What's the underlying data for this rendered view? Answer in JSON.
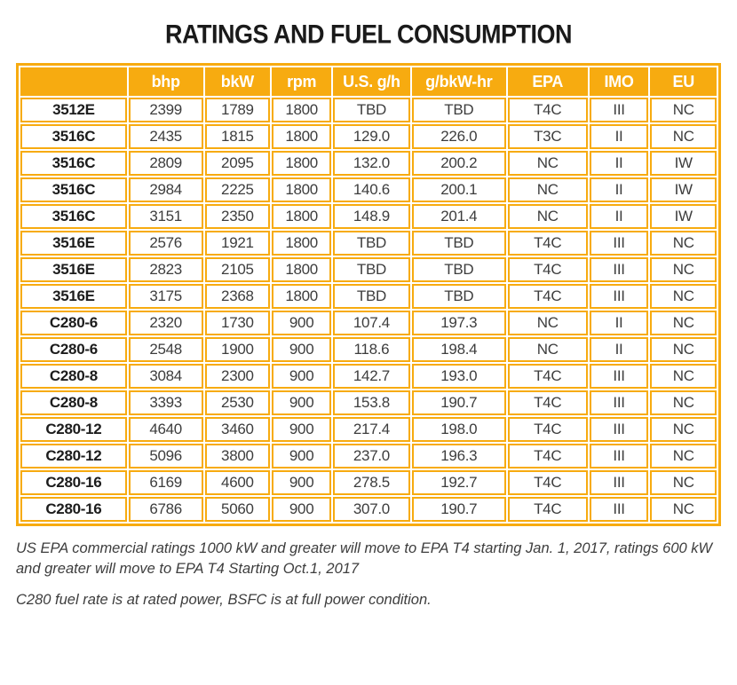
{
  "title": "RATINGS AND FUEL CONSUMPTION",
  "colors": {
    "accent": "#F7AB10",
    "header_text": "#FFFFFF",
    "body_text": "#3D3D3D",
    "model_text": "#1C1C1C",
    "title_color": "#1A1A1A"
  },
  "table": {
    "headers": [
      "",
      "bhp",
      "bkW",
      "rpm",
      "U.S. g/h",
      "g/bkW-hr",
      "EPA",
      "IMO",
      "EU"
    ],
    "rows": [
      {
        "model": "3512E",
        "values": [
          "2399",
          "1789",
          "1800",
          "TBD",
          "TBD",
          "T4C",
          "III",
          "NC"
        ]
      },
      {
        "model": "3516C",
        "values": [
          "2435",
          "1815",
          "1800",
          "129.0",
          "226.0",
          "T3C",
          "II",
          "NC"
        ]
      },
      {
        "model": "3516C",
        "values": [
          "2809",
          "2095",
          "1800",
          "132.0",
          "200.2",
          "NC",
          "II",
          "IW"
        ]
      },
      {
        "model": "3516C",
        "values": [
          "2984",
          "2225",
          "1800",
          "140.6",
          "200.1",
          "NC",
          "II",
          "IW"
        ]
      },
      {
        "model": "3516C",
        "values": [
          "3151",
          "2350",
          "1800",
          "148.9",
          "201.4",
          "NC",
          "II",
          "IW"
        ]
      },
      {
        "model": "3516E",
        "values": [
          "2576",
          "1921",
          "1800",
          "TBD",
          "TBD",
          "T4C",
          "III",
          "NC"
        ]
      },
      {
        "model": "3516E",
        "values": [
          "2823",
          "2105",
          "1800",
          "TBD",
          "TBD",
          "T4C",
          "III",
          "NC"
        ]
      },
      {
        "model": "3516E",
        "values": [
          "3175",
          "2368",
          "1800",
          "TBD",
          "TBD",
          "T4C",
          "III",
          "NC"
        ]
      },
      {
        "model": "C280-6",
        "values": [
          "2320",
          "1730",
          "900",
          "107.4",
          "197.3",
          "NC",
          "II",
          "NC"
        ]
      },
      {
        "model": "C280-6",
        "values": [
          "2548",
          "1900",
          "900",
          "118.6",
          "198.4",
          "NC",
          "II",
          "NC"
        ]
      },
      {
        "model": "C280-8",
        "values": [
          "3084",
          "2300",
          "900",
          "142.7",
          "193.0",
          "T4C",
          "III",
          "NC"
        ]
      },
      {
        "model": "C280-8",
        "values": [
          "3393",
          "2530",
          "900",
          "153.8",
          "190.7",
          "T4C",
          "III",
          "NC"
        ]
      },
      {
        "model": "C280-12",
        "values": [
          "4640",
          "3460",
          "900",
          "217.4",
          "198.0",
          "T4C",
          "III",
          "NC"
        ]
      },
      {
        "model": "C280-12",
        "values": [
          "5096",
          "3800",
          "900",
          "237.0",
          "196.3",
          "T4C",
          "III",
          "NC"
        ]
      },
      {
        "model": "C280-16",
        "values": [
          "6169",
          "4600",
          "900",
          "278.5",
          "192.7",
          "T4C",
          "III",
          "NC"
        ]
      },
      {
        "model": "C280-16",
        "values": [
          "6786",
          "5060",
          "900",
          "307.0",
          "190.7",
          "T4C",
          "III",
          "NC"
        ]
      }
    ]
  },
  "footnotes": [
    "US EPA commercial ratings 1000 kW and greater will move to EPA T4 starting Jan. 1, 2017, ratings 600 kW and greater will move to EPA T4 Starting Oct.1, 2017",
    "C280 fuel rate is at rated power, BSFC is at full power condition."
  ]
}
